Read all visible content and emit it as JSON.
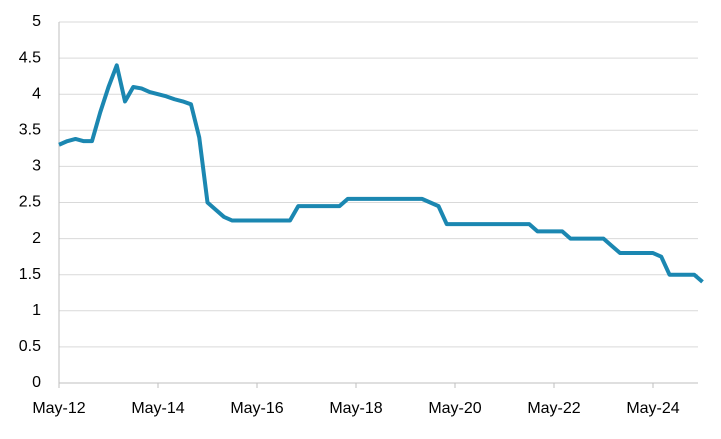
{
  "chart_data": {
    "type": "line",
    "categories": [
      "May-12",
      null,
      null,
      null,
      null,
      null,
      null,
      null,
      null,
      null,
      null,
      null,
      "May-14",
      null,
      null,
      null,
      null,
      null,
      null,
      null,
      null,
      null,
      null,
      null,
      "May-16",
      null,
      null,
      null,
      null,
      null,
      null,
      null,
      null,
      null,
      null,
      null,
      "May-18",
      null,
      null,
      null,
      null,
      null,
      null,
      null,
      null,
      null,
      null,
      null,
      "May-20",
      null,
      null,
      null,
      null,
      null,
      null,
      null,
      null,
      null,
      null,
      null,
      "May-22",
      null,
      null,
      null,
      null,
      null,
      null,
      null,
      null,
      null,
      null,
      null,
      "May-24",
      null,
      null,
      null,
      null,
      null,
      null
    ],
    "values": [
      3.3,
      3.35,
      3.38,
      3.35,
      3.35,
      3.75,
      4.1,
      4.4,
      3.9,
      4.1,
      4.08,
      4.03,
      4.0,
      3.97,
      3.93,
      3.9,
      3.86,
      3.4,
      2.5,
      2.4,
      2.3,
      2.25,
      2.25,
      2.25,
      2.25,
      2.25,
      2.25,
      2.25,
      2.25,
      2.45,
      2.45,
      2.45,
      2.45,
      2.45,
      2.45,
      2.55,
      2.55,
      2.55,
      2.55,
      2.55,
      2.55,
      2.55,
      2.55,
      2.55,
      2.55,
      2.5,
      2.45,
      2.2,
      2.2,
      2.2,
      2.2,
      2.2,
      2.2,
      2.2,
      2.2,
      2.2,
      2.2,
      2.2,
      2.1,
      2.1,
      2.1,
      2.1,
      2.0,
      2.0,
      2.0,
      2.0,
      2.0,
      1.9,
      1.8,
      1.8,
      1.8,
      1.8,
      1.8,
      1.75,
      1.5,
      1.5,
      1.5,
      1.5,
      1.4
    ],
    "color": "#1b87b1",
    "ylim": [
      0,
      5
    ],
    "yticks": [
      0,
      0.5,
      1,
      1.5,
      2,
      2.5,
      3,
      3.5,
      4,
      4.5,
      5
    ],
    "grid": true
  }
}
